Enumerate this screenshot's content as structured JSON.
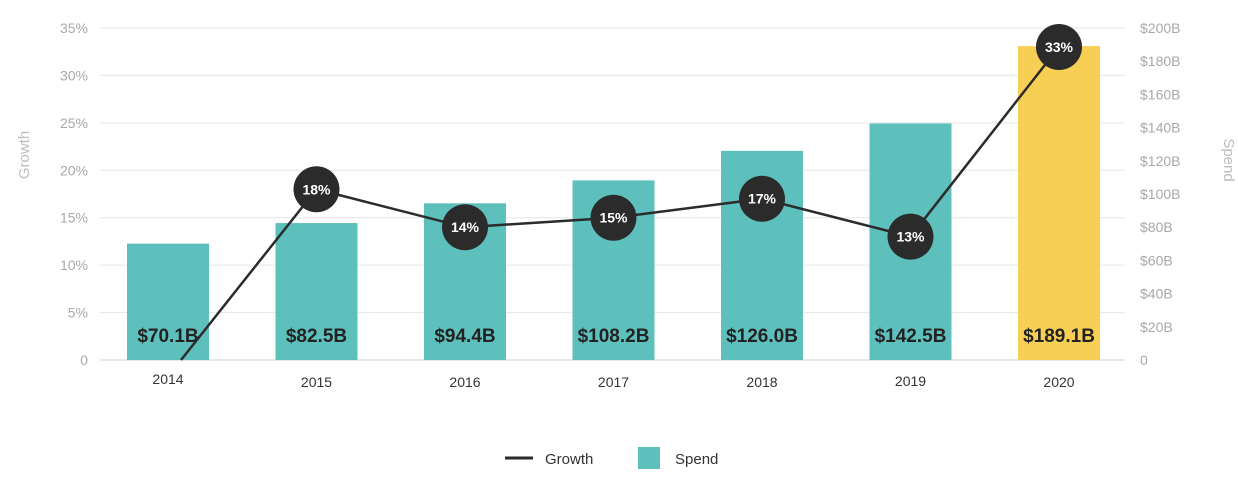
{
  "chart_data": {
    "type": "bar",
    "categories": [
      "2014",
      "2015",
      "2016",
      "2017",
      "2018",
      "2019",
      "2020"
    ],
    "series": [
      {
        "name": "Spend",
        "type": "bar",
        "axis": "right",
        "values": [
          70.1,
          82.5,
          94.4,
          108.2,
          126.0,
          142.5,
          189.1
        ],
        "data_labels": [
          "$70.1B",
          "$82.5B",
          "$94.4B",
          "$108.2B",
          "$126.0B",
          "$142.5B",
          "$189.1B"
        ]
      },
      {
        "name": "Growth",
        "type": "line",
        "axis": "left",
        "values": [
          0,
          18,
          14,
          15,
          17,
          13,
          33
        ],
        "data_labels": [
          "",
          "18%",
          "14%",
          "15%",
          "17%",
          "13%",
          "33%"
        ]
      }
    ],
    "ylabel": "Growth",
    "ylim": [
      0,
      35
    ],
    "yticks": [
      "0",
      "5%",
      "10%",
      "15%",
      "20%",
      "25%",
      "30%",
      "35%"
    ],
    "y2label": "Spend",
    "y2lim": [
      0,
      200
    ],
    "y2ticks": [
      "0",
      "$20B",
      "$40B",
      "$60B",
      "$80B",
      "$100B",
      "$120B",
      "$140B",
      "$160B",
      "$180B",
      "$200B"
    ],
    "grid": true,
    "legend": "bottom-center",
    "colors": {
      "bar": "#5ec0bd",
      "highlight_bar": "#f7cf55",
      "line": "#2b2b2b",
      "marker": "#2b2b2b",
      "grid": "#e6e6e6"
    },
    "highlight_category": "2020"
  },
  "legend": {
    "growth_label": "Growth",
    "spend_label": "Spend"
  }
}
